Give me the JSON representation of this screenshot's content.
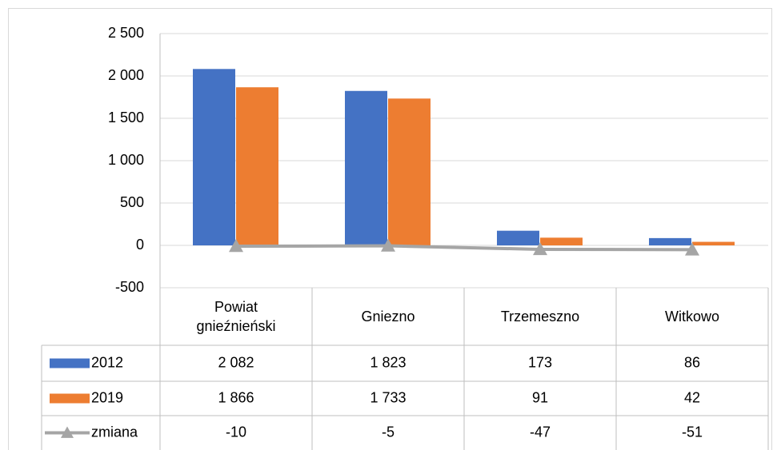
{
  "chart_data": {
    "type": "bar",
    "categories": [
      "Powiat gnieźnieński",
      "Gniezno",
      "Trzemeszno",
      "Witkowo"
    ],
    "series": [
      {
        "name": "2012",
        "type": "bar",
        "color": "#4472c4",
        "values": [
          2082,
          1823,
          173,
          86
        ],
        "value_labels": [
          "2 082",
          "1 823",
          "173",
          "86"
        ]
      },
      {
        "name": "2019",
        "type": "bar",
        "color": "#ed7d31",
        "values": [
          1866,
          1733,
          91,
          42
        ],
        "value_labels": [
          "1 866",
          "1 733",
          "91",
          "42"
        ]
      },
      {
        "name": "zmiana",
        "type": "line",
        "color": "#a5a5a5",
        "values": [
          -10,
          -5,
          -47,
          -51
        ],
        "value_labels": [
          "-10",
          "-5",
          "-47",
          "-51"
        ]
      }
    ],
    "ylim": [
      -500,
      2500
    ],
    "yticks": [
      {
        "value": 2500,
        "label": "2 500"
      },
      {
        "value": 2000,
        "label": "2 000"
      },
      {
        "value": 1500,
        "label": "1 500"
      },
      {
        "value": 1000,
        "label": "1 000"
      },
      500,
      0,
      -500
    ],
    "grid": true
  }
}
